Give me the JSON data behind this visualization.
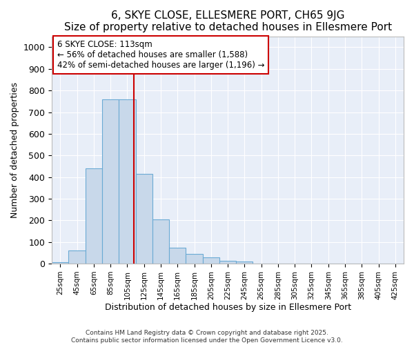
{
  "title1": "6, SKYE CLOSE, ELLESMERE PORT, CH65 9JG",
  "title2": "Size of property relative to detached houses in Ellesmere Port",
  "xlabel": "Distribution of detached houses by size in Ellesmere Port",
  "ylabel": "Number of detached properties",
  "bin_starts": [
    15,
    35,
    55,
    75,
    95,
    115,
    135,
    155,
    175,
    195,
    215,
    235,
    255,
    275,
    295,
    315,
    335,
    355,
    375,
    395,
    415
  ],
  "bin_heights": [
    8,
    60,
    440,
    760,
    760,
    415,
    205,
    75,
    45,
    28,
    13,
    10,
    0,
    0,
    0,
    0,
    0,
    0,
    0,
    0,
    0
  ],
  "bin_width": 20,
  "bar_color": "#c8d8ea",
  "bar_edgecolor": "#6aaad4",
  "bar_linewidth": 0.8,
  "vline_x": 113,
  "vline_color": "#cc0000",
  "vline_linewidth": 1.5,
  "annotation_lines": [
    "6 SKYE CLOSE: 113sqm",
    "← 56% of detached houses are smaller (1,588)",
    "42% of semi-detached houses are larger (1,196) →"
  ],
  "annotation_box_edgecolor": "#cc0000",
  "annotation_box_facecolor": "#ffffff",
  "annotation_fontsize": 8.5,
  "ylim": [
    0,
    1050
  ],
  "yticks": [
    0,
    100,
    200,
    300,
    400,
    500,
    600,
    700,
    800,
    900,
    1000
  ],
  "tick_labels": [
    "25sqm",
    "45sqm",
    "65sqm",
    "85sqm",
    "105sqm",
    "125sqm",
    "145sqm",
    "165sqm",
    "185sqm",
    "205sqm",
    "225sqm",
    "245sqm",
    "265sqm",
    "285sqm",
    "305sqm",
    "325sqm",
    "345sqm",
    "365sqm",
    "385sqm",
    "405sqm",
    "425sqm"
  ],
  "tick_positions": [
    25,
    45,
    65,
    85,
    105,
    125,
    145,
    165,
    185,
    205,
    225,
    245,
    265,
    285,
    305,
    325,
    345,
    365,
    385,
    405,
    425
  ],
  "fig_bg_color": "#ffffff",
  "plot_bg_color": "#e8eef8",
  "grid_color": "#ffffff",
  "footer1": "Contains HM Land Registry data © Crown copyright and database right 2025.",
  "footer2": "Contains public sector information licensed under the Open Government Licence v3.0.",
  "title_fontsize": 11,
  "subtitle_fontsize": 10,
  "xlabel_fontsize": 9,
  "ylabel_fontsize": 9,
  "tick_fontsize": 7.5,
  "ytick_fontsize": 9
}
